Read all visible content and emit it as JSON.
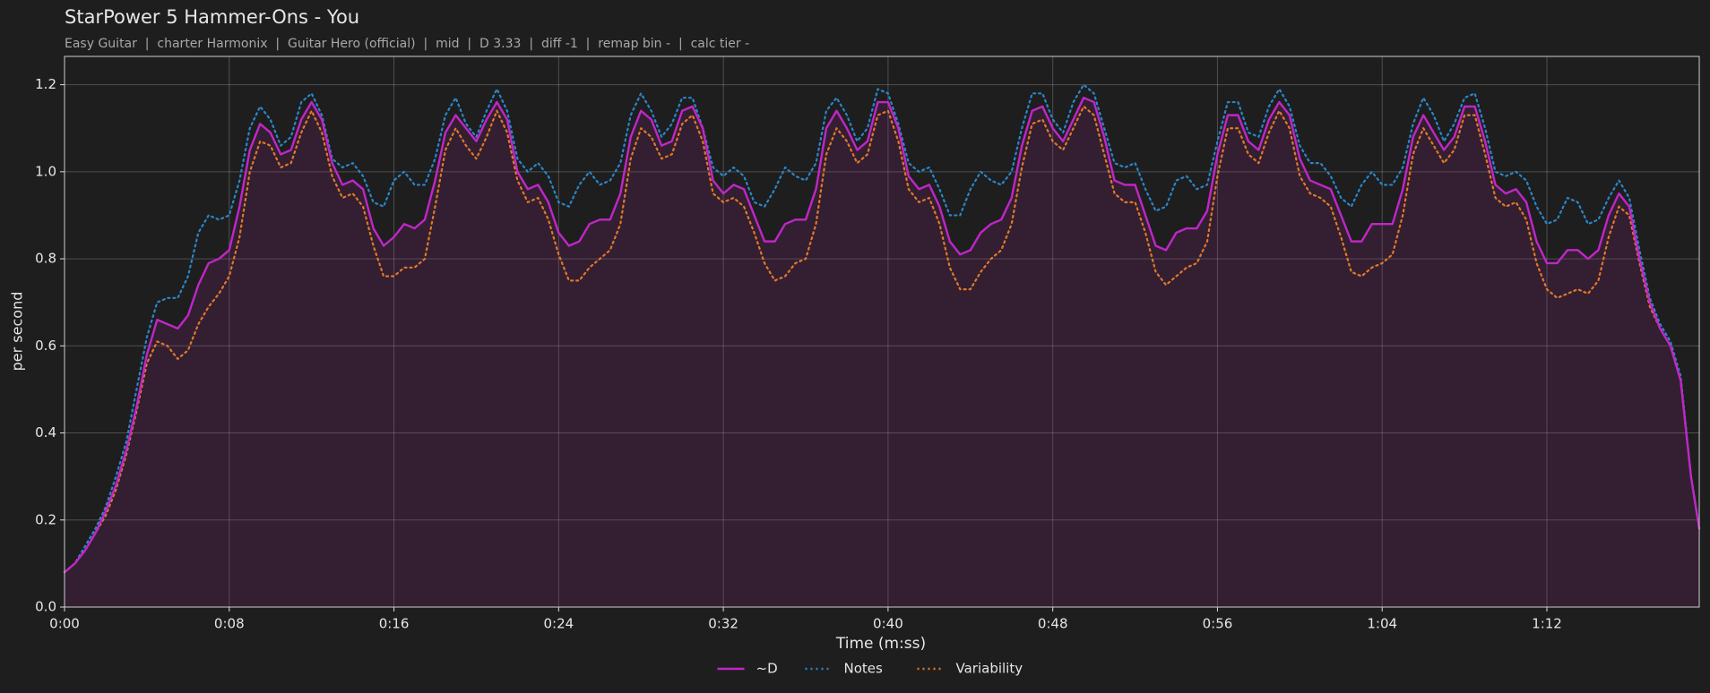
{
  "chart_data": {
    "type": "line",
    "title": "StarPower 5 Hammer-Ons - You",
    "subtitle": "Easy Guitar  |  charter Harmonix  |  Guitar Hero (official)  |  mid  |  D 3.33  |  diff -1  |  remap bin -  |  calc tier -",
    "xlabel": "Time (m:ss)",
    "ylabel": "per second",
    "xlim": [
      0,
      79.4
    ],
    "ylim": [
      0,
      1.265
    ],
    "xticks": [
      {
        "value": 0,
        "label": "0:00"
      },
      {
        "value": 8,
        "label": "0:08"
      },
      {
        "value": 16,
        "label": "0:16"
      },
      {
        "value": 24,
        "label": "0:24"
      },
      {
        "value": 32,
        "label": "0:32"
      },
      {
        "value": 40,
        "label": "0:40"
      },
      {
        "value": 48,
        "label": "0:48"
      },
      {
        "value": 56,
        "label": "0:56"
      },
      {
        "value": 64,
        "label": "1:04"
      },
      {
        "value": 72,
        "label": "1:12"
      }
    ],
    "yticks": [
      {
        "value": 0,
        "label": "0.0"
      },
      0.2,
      0.4,
      0.6,
      0.8,
      {
        "value": 1,
        "label": "1.0"
      },
      1.2
    ],
    "grid": true,
    "legend": "bottom",
    "x": [
      0,
      0.5,
      1,
      1.5,
      2,
      2.5,
      3,
      3.5,
      4,
      4.5,
      5,
      5.5,
      6,
      6.5,
      7,
      7.5,
      8,
      8.5,
      9,
      9.5,
      10,
      10.5,
      11,
      11.5,
      12,
      12.5,
      13,
      13.5,
      14,
      14.5,
      15,
      15.5,
      16,
      16.5,
      17,
      17.5,
      18,
      18.5,
      19,
      19.5,
      20,
      20.5,
      21,
      21.5,
      22,
      22.5,
      23,
      23.5,
      24,
      24.5,
      25,
      25.5,
      26,
      26.5,
      27,
      27.5,
      28,
      28.5,
      29,
      29.5,
      30,
      30.5,
      31,
      31.5,
      32,
      32.5,
      33,
      33.5,
      34,
      34.5,
      35,
      35.5,
      36,
      36.5,
      37,
      37.5,
      38,
      38.5,
      39,
      39.5,
      40,
      40.5,
      41,
      41.5,
      42,
      42.5,
      43,
      43.5,
      44,
      44.5,
      45,
      45.5,
      46,
      46.5,
      47,
      47.5,
      48,
      48.5,
      49,
      49.5,
      50,
      50.5,
      51,
      51.5,
      52,
      52.5,
      53,
      53.5,
      54,
      54.5,
      55,
      55.5,
      56,
      56.5,
      57,
      57.5,
      58,
      58.5,
      59,
      59.5,
      60,
      60.5,
      61,
      61.5,
      62,
      62.5,
      63,
      63.5,
      64,
      64.5,
      65,
      65.5,
      66,
      66.5,
      67,
      67.5,
      68,
      68.5,
      69,
      69.5,
      70,
      70.5,
      71,
      71.5,
      72,
      72.5,
      73,
      73.5,
      74,
      74.5,
      75,
      75.5,
      76,
      76.5,
      77,
      77.5,
      78,
      78.5,
      79,
      79.4
    ],
    "series": [
      {
        "name": "~D",
        "color": "#c026c8",
        "style": "solid",
        "fill": "rgba(160,40,150,0.16)",
        "values": [
          0.08,
          0.1,
          0.13,
          0.17,
          0.22,
          0.28,
          0.36,
          0.46,
          0.58,
          0.66,
          0.65,
          0.64,
          0.67,
          0.74,
          0.79,
          0.8,
          0.82,
          0.92,
          1.05,
          1.11,
          1.09,
          1.04,
          1.05,
          1.12,
          1.16,
          1.12,
          1.02,
          0.97,
          0.98,
          0.96,
          0.87,
          0.83,
          0.85,
          0.88,
          0.87,
          0.89,
          0.98,
          1.09,
          1.13,
          1.1,
          1.07,
          1.12,
          1.16,
          1.12,
          1.0,
          0.96,
          0.97,
          0.93,
          0.86,
          0.83,
          0.84,
          0.88,
          0.89,
          0.89,
          0.95,
          1.08,
          1.14,
          1.12,
          1.06,
          1.07,
          1.14,
          1.15,
          1.1,
          0.98,
          0.95,
          0.97,
          0.96,
          0.9,
          0.84,
          0.84,
          0.88,
          0.89,
          0.89,
          0.96,
          1.1,
          1.14,
          1.1,
          1.05,
          1.07,
          1.16,
          1.16,
          1.1,
          0.99,
          0.96,
          0.97,
          0.92,
          0.84,
          0.81,
          0.82,
          0.86,
          0.88,
          0.89,
          0.94,
          1.06,
          1.14,
          1.15,
          1.1,
          1.07,
          1.12,
          1.17,
          1.16,
          1.08,
          0.98,
          0.97,
          0.97,
          0.9,
          0.83,
          0.82,
          0.86,
          0.87,
          0.87,
          0.91,
          1.04,
          1.13,
          1.13,
          1.07,
          1.05,
          1.12,
          1.16,
          1.13,
          1.03,
          0.98,
          0.97,
          0.96,
          0.9,
          0.84,
          0.84,
          0.88,
          0.88,
          0.88,
          0.96,
          1.08,
          1.13,
          1.09,
          1.05,
          1.08,
          1.15,
          1.15,
          1.07,
          0.97,
          0.95,
          0.96,
          0.93,
          0.84,
          0.79,
          0.79,
          0.82,
          0.82,
          0.8,
          0.82,
          0.9,
          0.95,
          0.92,
          0.8,
          0.7,
          0.64,
          0.6,
          0.52,
          0.3,
          0.18
        ]
      },
      {
        "name": "Notes",
        "color": "#2a86c8",
        "style": "dotted",
        "values": [
          0.08,
          0.1,
          0.14,
          0.18,
          0.23,
          0.3,
          0.38,
          0.5,
          0.62,
          0.7,
          0.71,
          0.71,
          0.76,
          0.86,
          0.9,
          0.89,
          0.9,
          0.98,
          1.1,
          1.15,
          1.12,
          1.06,
          1.08,
          1.16,
          1.18,
          1.13,
          1.03,
          1.01,
          1.02,
          0.99,
          0.93,
          0.92,
          0.98,
          1.0,
          0.97,
          0.97,
          1.03,
          1.13,
          1.17,
          1.11,
          1.08,
          1.14,
          1.19,
          1.14,
          1.03,
          1.0,
          1.02,
          0.99,
          0.93,
          0.92,
          0.97,
          1.0,
          0.97,
          0.98,
          1.02,
          1.13,
          1.18,
          1.14,
          1.08,
          1.11,
          1.17,
          1.17,
          1.1,
          1.01,
          0.99,
          1.01,
          0.99,
          0.93,
          0.92,
          0.96,
          1.01,
          0.99,
          0.98,
          1.02,
          1.14,
          1.17,
          1.13,
          1.07,
          1.1,
          1.19,
          1.18,
          1.11,
          1.02,
          1.0,
          1.01,
          0.96,
          0.9,
          0.9,
          0.96,
          1.0,
          0.98,
          0.97,
          1.0,
          1.1,
          1.18,
          1.18,
          1.12,
          1.09,
          1.16,
          1.2,
          1.18,
          1.1,
          1.02,
          1.01,
          1.02,
          0.96,
          0.91,
          0.92,
          0.98,
          0.99,
          0.96,
          0.97,
          1.07,
          1.16,
          1.16,
          1.09,
          1.08,
          1.15,
          1.19,
          1.15,
          1.06,
          1.02,
          1.02,
          0.99,
          0.94,
          0.92,
          0.97,
          1.0,
          0.97,
          0.97,
          1.01,
          1.11,
          1.17,
          1.13,
          1.07,
          1.11,
          1.17,
          1.18,
          1.1,
          1.0,
          0.99,
          1.0,
          0.98,
          0.92,
          0.88,
          0.89,
          0.94,
          0.93,
          0.88,
          0.89,
          0.94,
          0.98,
          0.94,
          0.82,
          0.71,
          0.65,
          0.61,
          0.53,
          0.3,
          0.18
        ]
      },
      {
        "name": "Variability",
        "color": "#e0782a",
        "style": "dotted",
        "values": [
          0.08,
          0.1,
          0.13,
          0.17,
          0.21,
          0.27,
          0.35,
          0.45,
          0.56,
          0.61,
          0.6,
          0.57,
          0.59,
          0.65,
          0.69,
          0.72,
          0.76,
          0.85,
          1.0,
          1.07,
          1.06,
          1.01,
          1.02,
          1.09,
          1.14,
          1.09,
          0.99,
          0.94,
          0.95,
          0.92,
          0.83,
          0.76,
          0.76,
          0.78,
          0.78,
          0.8,
          0.92,
          1.05,
          1.1,
          1.06,
          1.03,
          1.08,
          1.14,
          1.09,
          0.98,
          0.93,
          0.94,
          0.89,
          0.81,
          0.75,
          0.75,
          0.78,
          0.8,
          0.82,
          0.88,
          1.03,
          1.1,
          1.08,
          1.03,
          1.04,
          1.11,
          1.13,
          1.07,
          0.95,
          0.93,
          0.94,
          0.92,
          0.86,
          0.79,
          0.75,
          0.76,
          0.79,
          0.8,
          0.88,
          1.04,
          1.1,
          1.07,
          1.02,
          1.04,
          1.13,
          1.14,
          1.07,
          0.96,
          0.93,
          0.94,
          0.88,
          0.78,
          0.73,
          0.73,
          0.77,
          0.8,
          0.82,
          0.88,
          1.01,
          1.11,
          1.12,
          1.07,
          1.05,
          1.1,
          1.15,
          1.13,
          1.04,
          0.95,
          0.93,
          0.93,
          0.86,
          0.77,
          0.74,
          0.76,
          0.78,
          0.79,
          0.84,
          0.99,
          1.1,
          1.1,
          1.04,
          1.02,
          1.09,
          1.14,
          1.1,
          0.99,
          0.95,
          0.94,
          0.92,
          0.85,
          0.77,
          0.76,
          0.78,
          0.79,
          0.81,
          0.9,
          1.04,
          1.1,
          1.06,
          1.02,
          1.05,
          1.13,
          1.13,
          1.04,
          0.94,
          0.92,
          0.93,
          0.89,
          0.79,
          0.73,
          0.71,
          0.72,
          0.73,
          0.72,
          0.75,
          0.85,
          0.92,
          0.9,
          0.79,
          0.69,
          0.64,
          0.6,
          0.52,
          0.3,
          0.18
        ]
      }
    ]
  }
}
